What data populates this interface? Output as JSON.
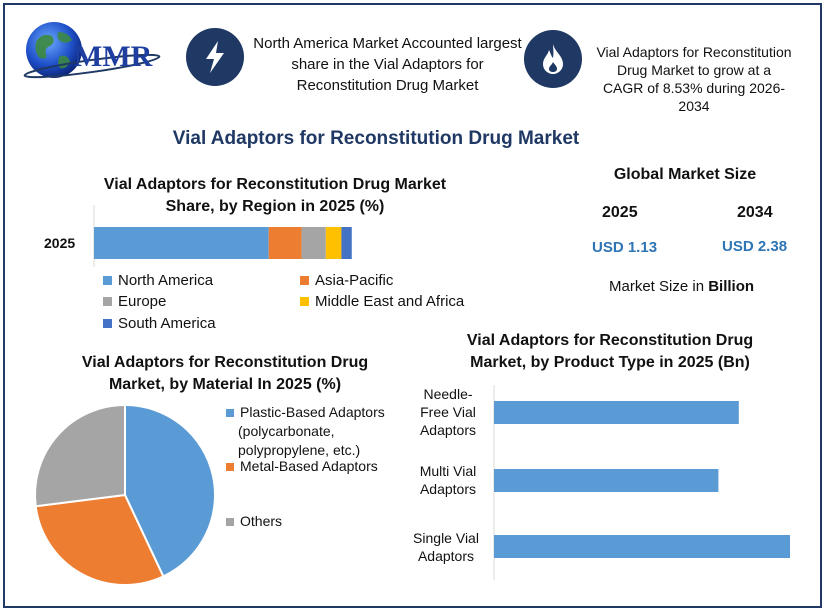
{
  "logo": {
    "text": "MMR"
  },
  "header": {
    "left_text": "North America Market Accounted largest share in the Vial Adaptors for Reconstitution Drug Market",
    "right_text": "Vial Adaptors for Reconstitution Drug Market to grow at a CAGR of 8.53% during 2026-2034",
    "left_icon": "lightning-icon",
    "right_icon": "flame-icon"
  },
  "main_title": "Vial Adaptors for Reconstitution Drug Market",
  "colors": {
    "navy": "#1f3864",
    "blue": "#5b9bd5",
    "orange": "#ed7d31",
    "gray": "#a5a5a5",
    "yellow": "#ffc000",
    "darkblue": "#4472c4"
  },
  "market_size": {
    "title": "Global Market Size",
    "year1": "2025",
    "value1": "USD 1.13",
    "year2": "2034",
    "value2": "USD 2.38",
    "note_prefix": "Market Size in",
    "note_bold": "Billion"
  },
  "region_chart": {
    "title_line1": "Vial Adaptors for Reconstitution Drug Market",
    "title_line2": "Share, by Region in 2025 (%)",
    "chart_data": {
      "type": "bar",
      "stacked": true,
      "orientation": "horizontal",
      "categories": [
        "2025"
      ],
      "series": [
        {
          "name": "North America",
          "values": [
            50.5
          ],
          "color": "#5b9bd5"
        },
        {
          "name": "Asia-Pacific",
          "values": [
            9.5
          ],
          "color": "#ed7d31"
        },
        {
          "name": "Europe",
          "values": [
            7
          ],
          "color": "#a5a5a5"
        },
        {
          "name": "Middle East and Africa",
          "values": [
            4.5
          ],
          "color": "#ffc000"
        },
        {
          "name": "South America",
          "values": [
            3
          ],
          "color": "#4472c4"
        }
      ],
      "xlim": [
        0,
        100
      ],
      "legend": "bottom"
    }
  },
  "material_chart": {
    "title_line1": "Vial Adaptors for Reconstitution Drug",
    "title_line2": "Market, by Material In 2025 (%)",
    "chart_data": {
      "type": "pie",
      "labels": [
        "Plastic-Based Adaptors (polycarbonate, polypropylene, etc.)",
        "Metal-Based Adaptors",
        "Others"
      ],
      "values": [
        43,
        30,
        27
      ],
      "colors": [
        "#5b9bd5",
        "#ed7d31",
        "#a5a5a5"
      ],
      "legend": "right"
    },
    "legend_lines": [
      [
        "Plastic-Based Adaptors",
        "(polycarbonate,",
        "polypropylene, etc.)"
      ],
      [
        "Metal-Based Adaptors"
      ],
      [
        "Others"
      ]
    ]
  },
  "product_chart": {
    "title_line1": "Vial Adaptors for Reconstitution Drug",
    "title_line2": "Market, by Product Type in 2025 (Bn)",
    "chart_data": {
      "type": "bar",
      "orientation": "horizontal",
      "categories": [
        "Needle-Free Vial Adaptors",
        "Multi Vial Adaptors",
        "Single Vial Adaptors"
      ],
      "values": [
        0.36,
        0.33,
        0.44
      ],
      "xlim": [
        0,
        0.5
      ],
      "color": "#5b9bd5"
    },
    "label_lines": [
      [
        "Needle-",
        "Free Vial",
        "Adaptors"
      ],
      [
        "Multi Vial",
        "Adaptors"
      ],
      [
        "Single Vial",
        "Adaptors"
      ]
    ]
  }
}
